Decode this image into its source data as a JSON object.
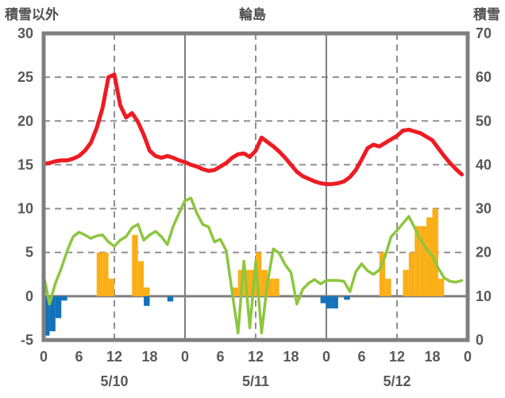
{
  "header": {
    "left_axis_title": "積雪以外",
    "station_title": "輪島",
    "right_axis_title": "積雪"
  },
  "chart_data": {
    "type": "line+bar",
    "title": "輪島",
    "left_axis_label": "積雪以外",
    "right_axis_label": "積雪",
    "x_range_hours": [
      0,
      72
    ],
    "left_axis": {
      "min": -5,
      "max": 30,
      "tick_values": [
        30,
        25,
        20,
        15,
        10,
        5,
        0,
        -5
      ]
    },
    "right_axis": {
      "min": 0,
      "max": 70,
      "tick_values": [
        70,
        60,
        50,
        40,
        30,
        20,
        10,
        0
      ]
    },
    "x_ticks": {
      "hours": [
        0,
        6,
        12,
        18,
        24,
        30,
        36,
        42,
        48,
        54,
        60,
        66,
        72
      ],
      "labels": [
        "0",
        "6",
        "12",
        "18",
        "0",
        "6",
        "12",
        "18",
        "0",
        "6",
        "12",
        "18",
        "0"
      ]
    },
    "date_labels": [
      {
        "label": "5/10",
        "center_hour": 12
      },
      {
        "label": "5/11",
        "center_hour": 36
      },
      {
        "label": "5/12",
        "center_hour": 60
      }
    ],
    "gridlines": {
      "horizontal_dashed_values": [
        25,
        20,
        15,
        10,
        5
      ],
      "horizontal_solid_values": [
        0
      ],
      "vertical_dashed_hours": [
        12,
        36,
        60
      ],
      "vertical_solid_hours": [
        24,
        48
      ]
    },
    "colors": {
      "red_line": "#ee1b23",
      "green_line": "#8dc63f",
      "yellow_bars": "#fbaf17",
      "blue_bars": "#1272ba",
      "grid": "#8f8f8f",
      "frame": "#7f7f7f",
      "text": "#585858"
    },
    "series": [
      {
        "name": "red-line",
        "type": "line",
        "color_key": "red_line",
        "axis": "left",
        "hourly_values": [
          15.1,
          15.2,
          15.4,
          15.5,
          15.5,
          15.7,
          16.0,
          16.6,
          17.5,
          19.2,
          21.5,
          25.0,
          25.3,
          21.8,
          20.4,
          20.9,
          19.9,
          18.4,
          16.6,
          16.0,
          15.8,
          16.0,
          15.8,
          15.5,
          15.3,
          15.0,
          14.8,
          14.5,
          14.3,
          14.4,
          14.8,
          15.2,
          15.8,
          16.2,
          16.3,
          15.9,
          16.6,
          18.1,
          17.6,
          17.1,
          16.5,
          15.8,
          15.0,
          14.2,
          13.7,
          13.4,
          13.1,
          12.9,
          12.8,
          12.8,
          12.9,
          13.1,
          13.6,
          14.4,
          15.6,
          16.9,
          17.3,
          17.1,
          17.5,
          17.9,
          18.3,
          18.9,
          19.0,
          18.8,
          18.6,
          18.2,
          17.8,
          16.9,
          16.0,
          15.2,
          14.5,
          13.9
        ]
      },
      {
        "name": "green-line",
        "type": "line",
        "color_key": "green_line",
        "axis": "left",
        "hourly_values": [
          2.4,
          -0.9,
          1.5,
          3.2,
          5.2,
          6.8,
          7.3,
          7.0,
          6.6,
          6.9,
          7.0,
          6.2,
          5.7,
          6.4,
          6.8,
          7.8,
          8.2,
          6.4,
          7.0,
          7.4,
          6.8,
          5.9,
          8.0,
          9.5,
          10.9,
          11.2,
          9.5,
          8.2,
          7.9,
          6.2,
          6.5,
          5.2,
          0.5,
          -4.2,
          4.0,
          -3.6,
          3.9,
          -4.2,
          1.5,
          5.4,
          4.9,
          3.6,
          2.7,
          -0.9,
          0.8,
          1.5,
          1.9,
          1.4,
          1.8,
          1.8,
          1.8,
          1.7,
          0.5,
          2.8,
          3.7,
          2.9,
          2.5,
          3.0,
          4.6,
          6.8,
          7.5,
          8.3,
          9.1,
          7.8,
          6.4,
          5.4,
          4.6,
          3.2,
          2.1,
          1.7,
          1.6,
          1.8
        ]
      },
      {
        "name": "yellow-bars",
        "type": "bar",
        "color_key": "yellow_bars",
        "axis": "left",
        "points": [
          [
            9,
            5
          ],
          [
            10,
            5
          ],
          [
            11,
            2
          ],
          [
            15,
            7
          ],
          [
            16,
            4
          ],
          [
            17,
            1
          ],
          [
            32,
            1
          ],
          [
            33,
            3
          ],
          [
            34,
            3
          ],
          [
            35,
            3
          ],
          [
            36,
            5
          ],
          [
            37,
            3
          ],
          [
            38,
            2
          ],
          [
            39,
            2
          ],
          [
            57,
            5
          ],
          [
            58,
            2
          ],
          [
            61,
            3
          ],
          [
            62,
            5
          ],
          [
            63,
            8
          ],
          [
            64,
            8
          ],
          [
            65,
            9
          ],
          [
            66,
            10
          ],
          [
            67,
            2
          ]
        ]
      },
      {
        "name": "blue-bars",
        "type": "bar",
        "color_key": "blue_bars",
        "axis": "left",
        "points": [
          [
            0,
            -4.5
          ],
          [
            1,
            -4.0
          ],
          [
            2,
            -2.5
          ],
          [
            3,
            -0.5
          ],
          [
            17,
            -1.1
          ],
          [
            21,
            -0.6
          ],
          [
            47,
            -0.8
          ],
          [
            48,
            -1.4
          ],
          [
            49,
            -1.4
          ],
          [
            51,
            -0.4
          ]
        ]
      }
    ]
  }
}
